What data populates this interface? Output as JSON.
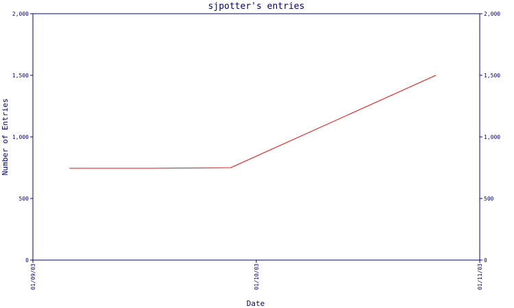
{
  "chart_data": {
    "type": "line",
    "title": "sjpotter's entries",
    "xlabel": "Date",
    "ylabel": "Number of Entries",
    "x_ticks": [
      "01/09/03",
      "01/10/03",
      "01/11/03"
    ],
    "y_ticks": [
      "0",
      "500",
      "1,000",
      "1,500",
      "2,000"
    ],
    "ylim": [
      0,
      2000
    ],
    "xlim": [
      "2003-09-01",
      "2003-11-01"
    ],
    "grid": false,
    "series": [
      {
        "color": "#ff0000",
        "x": [
          "2003-09-06",
          "2003-09-17",
          "2003-09-28",
          "2003-10-26"
        ],
        "y": [
          745,
          745,
          750,
          1500
        ]
      }
    ]
  },
  "colors": {
    "axis": "#000080",
    "line": "#ff0000",
    "background": "#ffffff"
  }
}
